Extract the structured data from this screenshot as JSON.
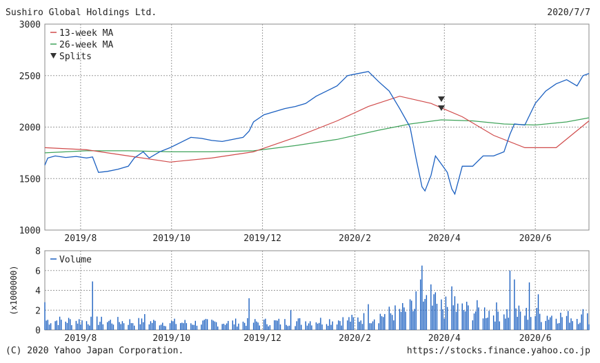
{
  "header": {
    "company": "Sushiro Global Holdings Ltd.",
    "date": "2020/7/7"
  },
  "footer": {
    "copyright": "(C) 2020 Yahoo Japan Corporation.",
    "url": "https://stocks.finance.yahoo.co.jp"
  },
  "colors": {
    "price": "#1a5fc0",
    "ma13": "#d04a4a",
    "ma26": "#3fa35a",
    "volume": "#1a5fc0",
    "split_marker": "#333333",
    "grid": "#999999"
  },
  "chart_data": [
    {
      "type": "line",
      "ylim": [
        1000,
        3000
      ],
      "yticks": [
        "1000",
        "1500",
        "2000",
        "2500",
        "3000"
      ],
      "xticks": [
        "2019/8",
        "2019/10",
        "2019/12",
        "2020/2",
        "2020/4",
        "2020/6"
      ],
      "x_range": [
        "2019-07-08",
        "2020-07-07"
      ],
      "grid": true,
      "legend_position": "top-left",
      "legend": [
        "13-week MA",
        "26-week MA",
        "Splits"
      ],
      "series": [
        {
          "name": "Price",
          "points": [
            [
              "2019-07-08",
              1630
            ],
            [
              "2019-07-10",
              1700
            ],
            [
              "2019-07-15",
              1720
            ],
            [
              "2019-07-22",
              1705
            ],
            [
              "2019-07-29",
              1715
            ],
            [
              "2019-08-05",
              1700
            ],
            [
              "2019-08-09",
              1710
            ],
            [
              "2019-08-13",
              1560
            ],
            [
              "2019-08-19",
              1570
            ],
            [
              "2019-08-26",
              1590
            ],
            [
              "2019-09-02",
              1620
            ],
            [
              "2019-09-06",
              1700
            ],
            [
              "2019-09-12",
              1760
            ],
            [
              "2019-09-16",
              1700
            ],
            [
              "2019-09-23",
              1760
            ],
            [
              "2019-09-30",
              1800
            ],
            [
              "2019-10-07",
              1850
            ],
            [
              "2019-10-14",
              1900
            ],
            [
              "2019-10-21",
              1890
            ],
            [
              "2019-10-28",
              1870
            ],
            [
              "2019-11-04",
              1860
            ],
            [
              "2019-11-11",
              1880
            ],
            [
              "2019-11-18",
              1900
            ],
            [
              "2019-11-22",
              1960
            ],
            [
              "2019-11-25",
              2050
            ],
            [
              "2019-12-02",
              2120
            ],
            [
              "2019-12-09",
              2150
            ],
            [
              "2019-12-16",
              2180
            ],
            [
              "2019-12-23",
              2200
            ],
            [
              "2019-12-30",
              2230
            ],
            [
              "2020-01-06",
              2300
            ],
            [
              "2020-01-13",
              2350
            ],
            [
              "2020-01-20",
              2400
            ],
            [
              "2020-01-27",
              2500
            ],
            [
              "2020-02-03",
              2520
            ],
            [
              "2020-02-10",
              2540
            ],
            [
              "2020-02-17",
              2440
            ],
            [
              "2020-02-24",
              2350
            ],
            [
              "2020-03-02",
              2180
            ],
            [
              "2020-03-09",
              2000
            ],
            [
              "2020-03-13",
              1700
            ],
            [
              "2020-03-17",
              1420
            ],
            [
              "2020-03-19",
              1380
            ],
            [
              "2020-03-23",
              1530
            ],
            [
              "2020-03-26",
              1720
            ],
            [
              "2020-03-30",
              1640
            ],
            [
              "2020-04-03",
              1560
            ],
            [
              "2020-04-06",
              1400
            ],
            [
              "2020-04-08",
              1350
            ],
            [
              "2020-04-13",
              1620
            ],
            [
              "2020-04-20",
              1620
            ],
            [
              "2020-04-27",
              1720
            ],
            [
              "2020-05-04",
              1720
            ],
            [
              "2020-05-11",
              1760
            ],
            [
              "2020-05-15",
              1930
            ],
            [
              "2020-05-18",
              2030
            ],
            [
              "2020-05-25",
              2020
            ],
            [
              "2020-06-01",
              2230
            ],
            [
              "2020-06-08",
              2350
            ],
            [
              "2020-06-15",
              2420
            ],
            [
              "2020-06-22",
              2460
            ],
            [
              "2020-06-29",
              2400
            ],
            [
              "2020-07-03",
              2500
            ],
            [
              "2020-07-07",
              2520
            ]
          ]
        },
        {
          "name": "13-week MA",
          "points": [
            [
              "2019-07-08",
              1800
            ],
            [
              "2019-08-05",
              1780
            ],
            [
              "2019-09-02",
              1720
            ],
            [
              "2019-09-30",
              1660
            ],
            [
              "2019-10-28",
              1700
            ],
            [
              "2019-11-25",
              1760
            ],
            [
              "2019-12-23",
              1900
            ],
            [
              "2020-01-20",
              2060
            ],
            [
              "2020-02-10",
              2200
            ],
            [
              "2020-03-02",
              2300
            ],
            [
              "2020-03-23",
              2230
            ],
            [
              "2020-04-13",
              2100
            ],
            [
              "2020-05-04",
              1920
            ],
            [
              "2020-05-25",
              1800
            ],
            [
              "2020-06-15",
              1800
            ],
            [
              "2020-07-07",
              2060
            ]
          ]
        },
        {
          "name": "26-week MA",
          "points": [
            [
              "2019-07-08",
              1750
            ],
            [
              "2019-08-05",
              1770
            ],
            [
              "2019-09-02",
              1770
            ],
            [
              "2019-09-30",
              1760
            ],
            [
              "2019-10-28",
              1760
            ],
            [
              "2019-11-25",
              1770
            ],
            [
              "2019-12-23",
              1820
            ],
            [
              "2020-01-20",
              1880
            ],
            [
              "2020-02-17",
              1970
            ],
            [
              "2020-03-09",
              2030
            ],
            [
              "2020-03-30",
              2070
            ],
            [
              "2020-04-20",
              2060
            ],
            [
              "2020-05-11",
              2030
            ],
            [
              "2020-06-01",
              2020
            ],
            [
              "2020-06-22",
              2050
            ],
            [
              "2020-07-07",
              2090
            ]
          ]
        }
      ],
      "splits": [
        "2020-03-30"
      ]
    },
    {
      "type": "bar",
      "series_name": "Volume",
      "ylim": [
        0,
        8
      ],
      "yticks": [
        "0",
        "2",
        "4",
        "6",
        "8"
      ],
      "ylabel": "(x1000000)",
      "xticks": [
        "2019/8",
        "2019/10",
        "2019/12",
        "2020/2",
        "2020/4",
        "2020/6"
      ],
      "legend": [
        "Volume"
      ],
      "volume_shape": {
        "baseline": [
          [
            "2019-07-08",
            1.2
          ],
          [
            "2019-08-15",
            1.1
          ],
          [
            "2019-10-15",
            0.9
          ],
          [
            "2019-12-15",
            1.0
          ],
          [
            "2020-02-01",
            1.3
          ],
          [
            "2020-03-01",
            2.2
          ],
          [
            "2020-03-20",
            3.0
          ],
          [
            "2020-04-15",
            2.5
          ],
          [
            "2020-05-15",
            2.2
          ],
          [
            "2020-06-10",
            1.8
          ],
          [
            "2020-07-07",
            1.5
          ]
        ],
        "spikes": [
          [
            "2019-07-08",
            2.8
          ],
          [
            "2019-08-09",
            4.9
          ],
          [
            "2019-09-13",
            1.6
          ],
          [
            "2019-11-22",
            3.2
          ],
          [
            "2019-12-20",
            2.0
          ],
          [
            "2020-02-10",
            2.6
          ],
          [
            "2020-03-13",
            3.9
          ],
          [
            "2020-03-16",
            5.1
          ],
          [
            "2020-03-17",
            6.5
          ],
          [
            "2020-03-23",
            4.6
          ],
          [
            "2020-03-26",
            3.8
          ],
          [
            "2020-04-06",
            4.4
          ],
          [
            "2020-04-08",
            3.4
          ],
          [
            "2020-05-15",
            6.0
          ],
          [
            "2020-05-18",
            5.1
          ],
          [
            "2020-05-28",
            4.8
          ],
          [
            "2020-06-03",
            3.6
          ],
          [
            "2020-07-03",
            2.1
          ]
        ]
      }
    }
  ]
}
